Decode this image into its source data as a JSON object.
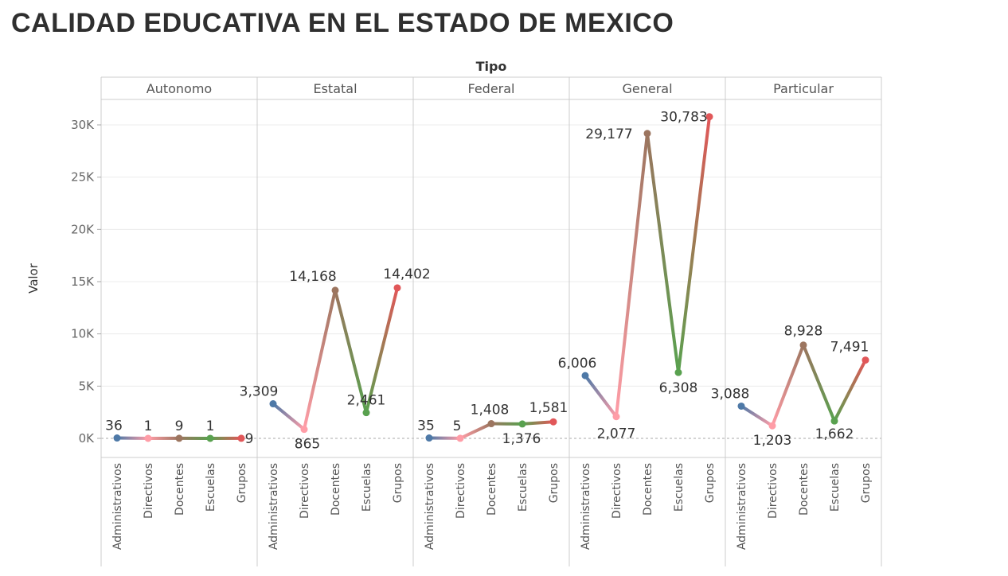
{
  "page": {
    "title": "CALIDAD EDUCATIVA EN EL ESTADO DE MEXICO"
  },
  "chart_data": {
    "type": "line",
    "column_title": "Tipo",
    "ylabel": "Valor",
    "ylim": [
      -1700,
      32500
    ],
    "yticks": [
      0,
      5000,
      10000,
      15000,
      20000,
      25000,
      30000
    ],
    "ytick_labels": [
      "0K",
      "5K",
      "10K",
      "15K",
      "20K",
      "25K",
      "30K"
    ],
    "categories": [
      "Administrativos",
      "Directivos",
      "Docentes",
      "Escuelas",
      "Grupos"
    ],
    "category_colors": [
      "#4e79a7",
      "#ff9da7",
      "#9c755f",
      "#59a14f",
      "#e15759"
    ],
    "grid": true,
    "facets": [
      {
        "name": "Autonomo",
        "values": [
          36,
          1,
          9,
          1,
          9
        ],
        "labels": [
          "36",
          "1",
          "9",
          "1",
          "9"
        ]
      },
      {
        "name": "Estatal",
        "values": [
          3309,
          865,
          14168,
          2461,
          14402
        ],
        "labels": [
          "3,309",
          "865",
          "14,168",
          "2,461",
          "14,402"
        ]
      },
      {
        "name": "Federal",
        "values": [
          35,
          5,
          1408,
          1376,
          1581
        ],
        "labels": [
          "35",
          "5",
          "1,408",
          "1,376",
          "1,581"
        ]
      },
      {
        "name": "General",
        "values": [
          6006,
          2077,
          29177,
          6308,
          30783
        ],
        "labels": [
          "6,006",
          "2,077",
          "29,177",
          "6,308",
          "30,783"
        ]
      },
      {
        "name": "Particular",
        "values": [
          3088,
          1203,
          8928,
          1662,
          7491
        ],
        "labels": [
          "3,088",
          "1,203",
          "8,928",
          "1,662",
          "7,491"
        ]
      }
    ]
  }
}
